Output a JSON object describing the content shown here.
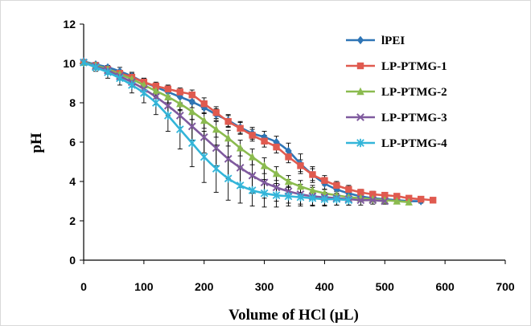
{
  "chart_data": {
    "type": "line",
    "title": "",
    "xlabel": "Volume of HCl (µL)",
    "ylabel": "pH",
    "xlim": [
      0,
      700
    ],
    "ylim": [
      0,
      12
    ],
    "xticks": [
      "0",
      "100",
      "200",
      "300",
      "400",
      "500",
      "600",
      "700"
    ],
    "yticks": [
      "0",
      "2",
      "4",
      "6",
      "8",
      "10",
      "12"
    ],
    "grid": false,
    "legend_position": "right",
    "series": [
      {
        "name": "lPEI",
        "color": "#2e75b6",
        "marker": "diamond",
        "x": [
          0,
          20,
          40,
          60,
          80,
          100,
          120,
          140,
          160,
          180,
          200,
          220,
          240,
          260,
          280,
          300,
          320,
          340,
          360,
          380,
          400,
          420,
          440,
          460,
          480,
          500,
          520,
          540,
          560
        ],
        "y": [
          10.1,
          9.95,
          9.8,
          9.6,
          9.35,
          9.05,
          8.8,
          8.55,
          8.3,
          8.05,
          7.75,
          7.4,
          7.1,
          6.75,
          6.45,
          6.25,
          6.0,
          5.55,
          4.9,
          4.35,
          3.9,
          3.6,
          3.4,
          3.25,
          3.15,
          3.1,
          3.05,
          3.0,
          3.0
        ],
        "err": [
          0.1,
          0.1,
          0.1,
          0.2,
          0.2,
          0.2,
          0.2,
          0.3,
          0.3,
          0.3,
          0.3,
          0.3,
          0.3,
          0.3,
          0.3,
          0.3,
          0.3,
          0.4,
          0.5,
          0.4,
          0.3,
          0.25,
          0.2,
          0.15,
          0.1,
          0.1,
          0.1,
          0.1,
          0.1
        ]
      },
      {
        "name": "LP-PTMG-1",
        "color": "#e05a4f",
        "marker": "square",
        "x": [
          0,
          20,
          40,
          60,
          80,
          100,
          120,
          140,
          160,
          180,
          200,
          220,
          240,
          260,
          280,
          300,
          320,
          340,
          360,
          380,
          400,
          420,
          440,
          460,
          480,
          500,
          520,
          540,
          560,
          580
        ],
        "y": [
          10.05,
          9.9,
          9.7,
          9.5,
          9.3,
          9.05,
          8.85,
          8.7,
          8.55,
          8.4,
          7.95,
          7.5,
          7.05,
          6.7,
          6.35,
          6.05,
          5.75,
          5.25,
          4.8,
          4.35,
          4.05,
          3.8,
          3.6,
          3.45,
          3.35,
          3.3,
          3.25,
          3.15,
          3.1,
          3.05
        ],
        "err": [
          0.1,
          0.1,
          0.1,
          0.15,
          0.2,
          0.2,
          0.2,
          0.2,
          0.2,
          0.25,
          0.3,
          0.3,
          0.3,
          0.3,
          0.3,
          0.3,
          0.3,
          0.3,
          0.3,
          0.3,
          0.25,
          0.2,
          0.2,
          0.15,
          0.15,
          0.1,
          0.1,
          0.1,
          0.1,
          0.1
        ]
      },
      {
        "name": "LP-PTMG-2",
        "color": "#8bbb4f",
        "marker": "triangle",
        "x": [
          0,
          20,
          40,
          60,
          80,
          100,
          120,
          140,
          160,
          180,
          200,
          220,
          240,
          260,
          280,
          300,
          320,
          340,
          360,
          380,
          400,
          420,
          440,
          460,
          480,
          500,
          520,
          540
        ],
        "y": [
          10.05,
          9.9,
          9.7,
          9.45,
          9.2,
          8.9,
          8.6,
          8.3,
          7.95,
          7.55,
          7.1,
          6.65,
          6.2,
          5.7,
          5.25,
          4.8,
          4.4,
          4.0,
          3.75,
          3.55,
          3.4,
          3.3,
          3.2,
          3.15,
          3.1,
          3.05,
          3.0,
          2.95
        ],
        "err": [
          0.1,
          0.1,
          0.15,
          0.2,
          0.2,
          0.25,
          0.3,
          0.3,
          0.35,
          0.4,
          0.4,
          0.4,
          0.4,
          0.4,
          0.4,
          0.4,
          0.35,
          0.3,
          0.3,
          0.25,
          0.2,
          0.2,
          0.15,
          0.15,
          0.1,
          0.1,
          0.1,
          0.1
        ]
      },
      {
        "name": "LP-PTMG-3",
        "color": "#7f5a9e",
        "marker": "x",
        "x": [
          0,
          20,
          40,
          60,
          80,
          100,
          120,
          140,
          160,
          180,
          200,
          220,
          240,
          260,
          280,
          300,
          320,
          340,
          360,
          380,
          400,
          420,
          440,
          460,
          480,
          500
        ],
        "y": [
          10.05,
          9.85,
          9.65,
          9.35,
          9.05,
          8.7,
          8.3,
          7.85,
          7.35,
          6.8,
          6.25,
          5.7,
          5.15,
          4.7,
          4.3,
          3.95,
          3.7,
          3.5,
          3.35,
          3.25,
          3.2,
          3.15,
          3.1,
          3.05,
          3.05,
          3.0
        ],
        "err": [
          0.1,
          0.15,
          0.2,
          0.2,
          0.25,
          0.3,
          0.4,
          0.5,
          0.6,
          0.7,
          0.8,
          0.9,
          1.0,
          1.0,
          0.9,
          0.8,
          0.7,
          0.6,
          0.5,
          0.45,
          0.4,
          0.35,
          0.3,
          0.25,
          0.2,
          0.15
        ]
      },
      {
        "name": "LP-PTMG-4",
        "color": "#33b5d9",
        "marker": "star",
        "x": [
          0,
          20,
          40,
          60,
          80,
          100,
          120,
          140,
          160,
          180,
          200,
          220,
          240,
          260,
          280,
          300,
          320,
          340,
          360,
          380,
          400,
          420,
          440
        ],
        "y": [
          10.05,
          9.8,
          9.55,
          9.25,
          8.9,
          8.5,
          8.0,
          7.35,
          6.65,
          5.95,
          5.25,
          4.65,
          4.15,
          3.8,
          3.55,
          3.4,
          3.3,
          3.25,
          3.2,
          3.15,
          3.1,
          3.1,
          3.05
        ],
        "err": [
          0.1,
          0.2,
          0.3,
          0.35,
          0.4,
          0.5,
          0.6,
          0.8,
          1.0,
          1.2,
          1.3,
          1.2,
          1.1,
          0.9,
          0.8,
          0.7,
          0.6,
          0.5,
          0.45,
          0.4,
          0.35,
          0.3,
          0.25
        ]
      }
    ]
  }
}
